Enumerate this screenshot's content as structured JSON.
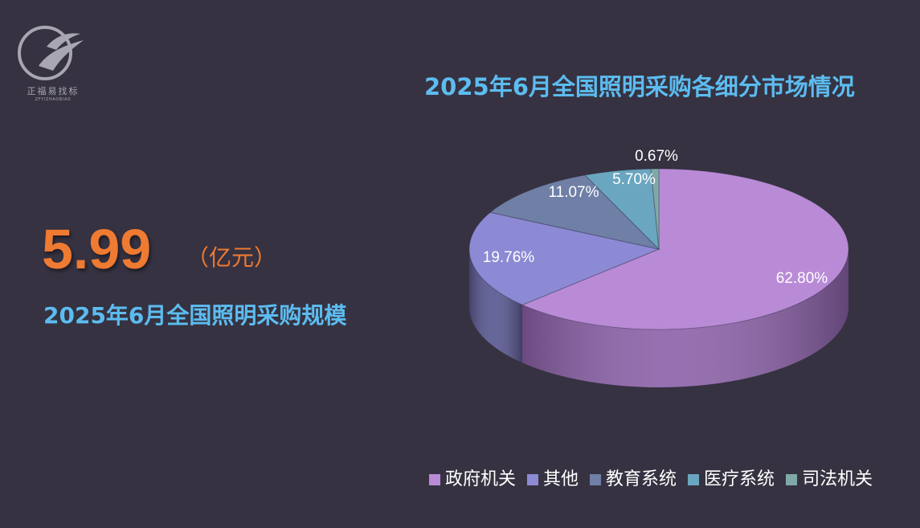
{
  "logo": {
    "name": "正福易找标",
    "sub": "ZFYIZHAOBIAO"
  },
  "headline": {
    "value": "5.99",
    "unit": "（亿元）",
    "label": "2025年6月全国照明采购规模"
  },
  "chart_data": {
    "type": "pie",
    "style": "3d",
    "title": "2025年6月全国照明采购各细分市场情况",
    "legend_position": "bottom",
    "categories": [
      "政府机关",
      "其他",
      "教育系统",
      "医疗系统",
      "司法机关"
    ],
    "values": [
      62.8,
      19.76,
      11.07,
      5.7,
      0.67
    ],
    "value_labels": [
      "62.80%",
      "19.76%",
      "11.07%",
      "5.70%",
      "0.67%"
    ],
    "colors": [
      "#b98bd6",
      "#8c8ad4",
      "#6f7fa6",
      "#6aa6c0",
      "#7fa9a8"
    ],
    "side_colors": [
      "#8d63aa",
      "#595891",
      "#4a5679",
      "#467a92",
      "#5a807f"
    ]
  }
}
